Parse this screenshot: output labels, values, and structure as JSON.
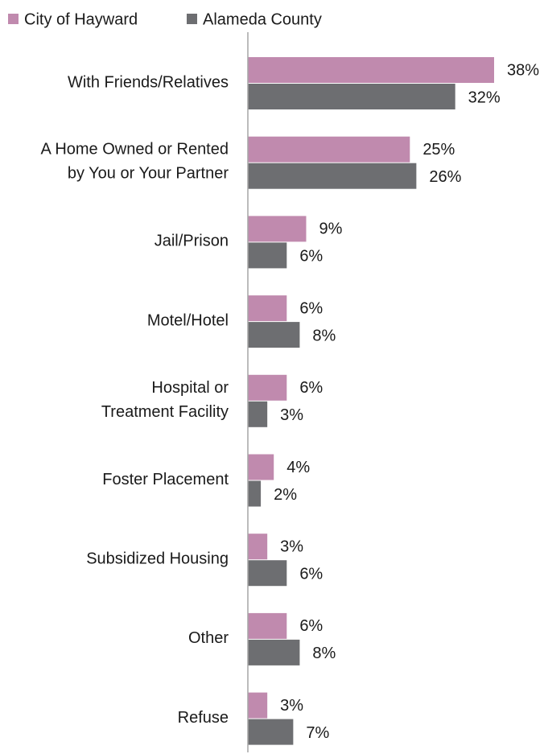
{
  "chart_data": {
    "type": "bar",
    "orientation": "horizontal",
    "categories": [
      "With Friends/Relatives",
      "A Home Owned or Rented\nby You or Your Partner",
      "Jail/Prison",
      "Motel/Hotel",
      "Hospital or\nTreatment Facility",
      "Foster Placement",
      "Subsidized Housing",
      "Other",
      "Refuse"
    ],
    "series": [
      {
        "name": "City of Hayward",
        "color": "#c08aae",
        "values": [
          38,
          25,
          9,
          6,
          6,
          4,
          3,
          6,
          3
        ],
        "value_labels": [
          "38%",
          "25%",
          "9%",
          "6%",
          "6%",
          "4%",
          "3%",
          "6%",
          "3%"
        ]
      },
      {
        "name": "Alameda County",
        "color": "#6d6e71",
        "values": [
          32,
          26,
          6,
          8,
          3,
          2,
          6,
          8,
          7
        ],
        "value_labels": [
          "32%",
          "26%",
          "6%",
          "8%",
          "3%",
          "2%",
          "6%",
          "8%",
          "7%"
        ]
      }
    ],
    "legend": "top-left"
  }
}
